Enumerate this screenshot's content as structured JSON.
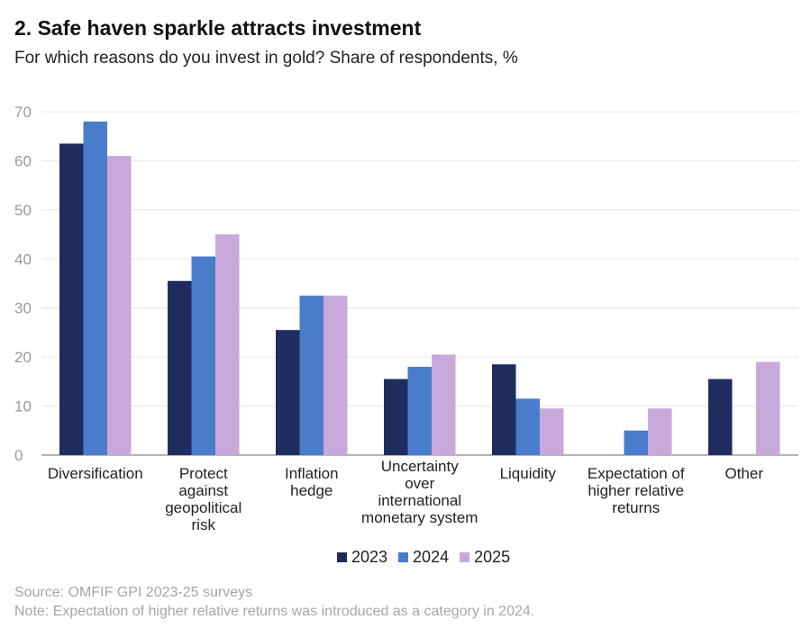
{
  "title": "2. Safe haven sparkle attracts investment",
  "subtitle": "For which reasons do you invest in gold? Share of respondents, %",
  "source": "Source: OMFIF GPI 2023-25 surveys",
  "note": "Note: Expectation of higher relative returns was introduced as a category in 2024.",
  "colors": {
    "2023": "#1f2d5e",
    "2024": "#4a7ccc",
    "2025": "#c9a8db",
    "grid": "#e4e4e4",
    "axis": "#888888",
    "tick": "#9a9a9a"
  },
  "chart_data": {
    "type": "bar",
    "categories": [
      [
        "Diversification"
      ],
      [
        "Protect",
        "against",
        "geopolitical",
        "risk"
      ],
      [
        "Inflation",
        "hedge"
      ],
      [
        "Uncertainty",
        "over",
        "international",
        "monetary system"
      ],
      [
        "Liquidity"
      ],
      [
        "Expectation of",
        "higher relative",
        "returns"
      ],
      [
        "Other"
      ]
    ],
    "series": [
      {
        "name": "2023",
        "values": [
          63.5,
          35.5,
          25.5,
          15.5,
          18.5,
          null,
          15.5
        ]
      },
      {
        "name": "2024",
        "values": [
          68,
          40.5,
          32.5,
          18,
          11.5,
          5,
          null
        ]
      },
      {
        "name": "2025",
        "values": [
          61,
          45,
          32.5,
          20.5,
          9.5,
          9.5,
          19
        ]
      }
    ],
    "y_ticks": [
      0,
      10,
      20,
      30,
      40,
      50,
      60,
      70
    ],
    "ylim": [
      0,
      70
    ],
    "grid": true,
    "legend_position": "bottom-center"
  }
}
